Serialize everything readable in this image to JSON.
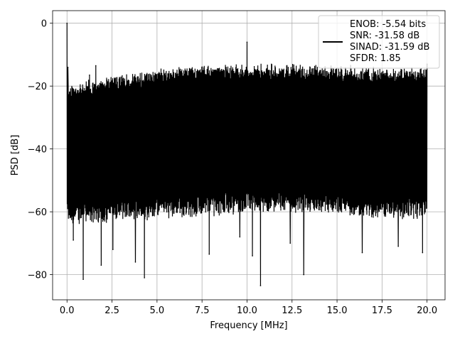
{
  "chart_data": {
    "type": "line",
    "title": "",
    "xlabel": "Frequency [MHz]",
    "ylabel": "PSD [dB]",
    "xlim": [
      -0.8,
      21.0
    ],
    "ylim": [
      -88,
      4
    ],
    "xticks": [
      0.0,
      2.5,
      5.0,
      7.5,
      10.0,
      12.5,
      15.0,
      17.5,
      20.0
    ],
    "xtick_labels": [
      "0.0",
      "2.5",
      "5.0",
      "7.5",
      "10.0",
      "12.5",
      "15.0",
      "17.5",
      "20.0"
    ],
    "yticks": [
      0,
      -20,
      -40,
      -60,
      -80
    ],
    "ytick_labels": [
      "0",
      "−20",
      "−40",
      "−60",
      "−80"
    ],
    "grid": true,
    "legend_position": "top-right",
    "series": [
      {
        "color": "#000000",
        "noise_floor_top": [
          [
            0.0,
            -22
          ],
          [
            2.0,
            -20
          ],
          [
            5.0,
            -17
          ],
          [
            7.5,
            -16
          ],
          [
            10.0,
            -15.5
          ],
          [
            12.5,
            -15.5
          ],
          [
            15.0,
            -16
          ],
          [
            17.5,
            -16.5
          ],
          [
            20.0,
            -17
          ]
        ],
        "noise_floor_bottom": [
          [
            0.0,
            -62
          ],
          [
            2.5,
            -61
          ],
          [
            5.0,
            -60
          ],
          [
            7.5,
            -59
          ],
          [
            10.0,
            -58
          ],
          [
            12.5,
            -58
          ],
          [
            15.0,
            -59
          ],
          [
            17.5,
            -60
          ],
          [
            20.0,
            -60
          ]
        ],
        "peaks": [
          {
            "x": 0.0,
            "y": 0.0
          },
          {
            "x": 0.05,
            "y": -14
          },
          {
            "x": 1.25,
            "y": -16.5
          },
          {
            "x": 1.6,
            "y": -13.5
          },
          {
            "x": 10.0,
            "y": -6
          },
          {
            "x": 20.0,
            "y": -13
          }
        ],
        "dips": [
          {
            "x": 0.35,
            "y": -69
          },
          {
            "x": 0.9,
            "y": -81.5
          },
          {
            "x": 1.9,
            "y": -77
          },
          {
            "x": 2.55,
            "y": -72
          },
          {
            "x": 3.8,
            "y": -76
          },
          {
            "x": 4.3,
            "y": -81
          },
          {
            "x": 7.9,
            "y": -73.5
          },
          {
            "x": 9.6,
            "y": -68
          },
          {
            "x": 10.3,
            "y": -74
          },
          {
            "x": 10.75,
            "y": -83.5
          },
          {
            "x": 12.4,
            "y": -70
          },
          {
            "x": 13.15,
            "y": -80
          },
          {
            "x": 16.4,
            "y": -73
          },
          {
            "x": 18.4,
            "y": -71
          },
          {
            "x": 19.75,
            "y": -73
          }
        ]
      }
    ],
    "legend": {
      "lines": [
        "ENOB: -5.54 bits",
        "SNR: -31.58 dB",
        "SINAD: -31.59 dB",
        "SFDR: 1.85"
      ]
    }
  }
}
